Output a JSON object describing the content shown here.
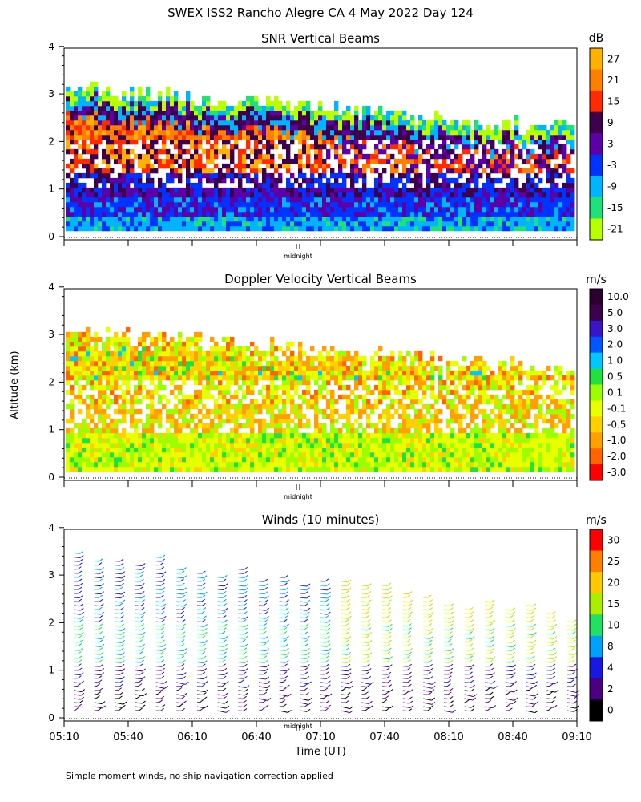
{
  "page_title": "SWEX ISS2 Rancho Alegre CA    4 May 2022 Day 124",
  "y_axis_label": "Altitude (km)",
  "x_axis_label": "Time (UT)",
  "footnote": "Simple moment winds, no ship navigation correction applied",
  "midnight_label": "midnight",
  "colors": {
    "background": "#ffffff",
    "axis": "#000000"
  },
  "chart_data": [
    {
      "type": "heatmap",
      "title": "SNR Vertical Beams",
      "colorbar_unit": "dB",
      "colorbar_labels": [
        "27",
        "21",
        "15",
        "9",
        "3",
        "-3",
        "-9",
        "-15",
        "-21"
      ],
      "colorbar_colors": [
        "#ffb000",
        "#ff7f00",
        "#ff2a00",
        "#3d004d",
        "#5c00a8",
        "#0033ff",
        "#00b4ff",
        "#20e07a",
        "#b8ff00"
      ],
      "ylim": [
        0,
        4
      ],
      "yticks": [
        "0",
        "1",
        "2",
        "3",
        "4"
      ],
      "xlim": [
        "05:10",
        "09:10"
      ],
      "xlabel": "",
      "ylabel": "Altitude (km)"
    },
    {
      "type": "heatmap",
      "title": "Doppler Velocity Vertical Beams",
      "colorbar_unit": "m/s",
      "colorbar_labels": [
        "10.0",
        "5.0",
        "3.0",
        "2.0",
        "1.0",
        "0.5",
        "0.1",
        "-0.1",
        "-0.5",
        "-1.0",
        "-2.0",
        "-3.0"
      ],
      "colorbar_colors": [
        "#2b0030",
        "#3d004d",
        "#3a14c8",
        "#0055ff",
        "#00c8ff",
        "#22e040",
        "#9cff00",
        "#e8ff00",
        "#ffd000",
        "#ffa000",
        "#ff6400",
        "#ff0000"
      ],
      "ylim": [
        0,
        4
      ],
      "yticks": [
        "0",
        "1",
        "2",
        "3",
        "4"
      ],
      "xlim": [
        "05:10",
        "09:10"
      ],
      "xlabel": "",
      "ylabel": "Altitude (km)"
    },
    {
      "type": "scatter",
      "title": "Winds (10 minutes)",
      "colorbar_unit": "m/s",
      "colorbar_labels": [
        "30",
        "25",
        "20",
        "15",
        "10",
        "8",
        "4",
        "2",
        "0"
      ],
      "colorbar_colors": [
        "#ff0000",
        "#ff7f00",
        "#ffc800",
        "#aaee00",
        "#22e060",
        "#00a0ff",
        "#1818e0",
        "#4a0080",
        "#000000"
      ],
      "ylim": [
        0,
        4
      ],
      "yticks": [
        "0",
        "1",
        "2",
        "3",
        "4"
      ],
      "xticks": [
        "05:10",
        "05:40",
        "06:10",
        "06:40",
        "07:10",
        "07:40",
        "08:10",
        "08:40",
        "09:10"
      ],
      "xlim": [
        "05:10",
        "09:10"
      ],
      "xlabel": "Time (UT)",
      "ylabel": "Altitude (km)"
    }
  ]
}
